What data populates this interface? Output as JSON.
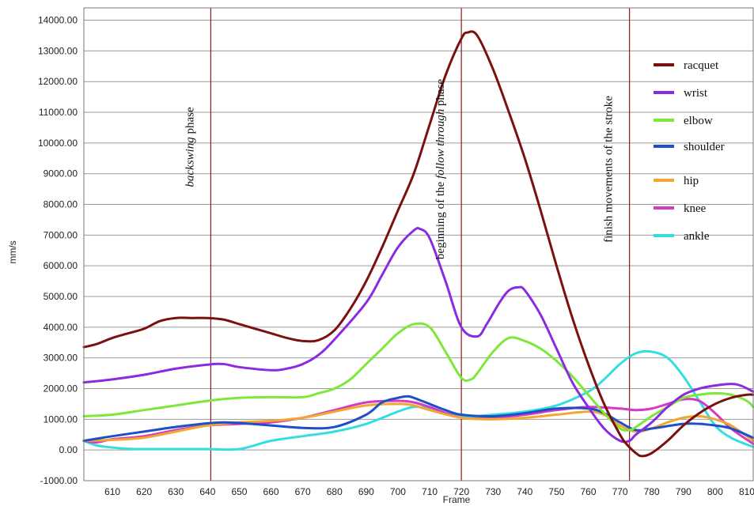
{
  "chart_data": {
    "type": "line",
    "title": "",
    "xlabel": "Frame",
    "ylabel": "mm/s",
    "xlim": [
      601,
      812
    ],
    "ylim": [
      -1000,
      14400
    ],
    "x_ticks": [
      610,
      620,
      630,
      640,
      650,
      660,
      670,
      680,
      690,
      700,
      710,
      720,
      730,
      740,
      750,
      760,
      770,
      780,
      790,
      800,
      810
    ],
    "y_ticks": [
      -1000,
      0,
      1000,
      2000,
      3000,
      4000,
      5000,
      6000,
      7000,
      8000,
      9000,
      10000,
      11000,
      12000,
      13000,
      14000
    ],
    "y_tick_labels": [
      "-1000.00",
      "0.00",
      "1000.00",
      "2000.00",
      "3000.00",
      "4000.00",
      "5000.00",
      "6000.00",
      "7000.00",
      "8000.00",
      "9000.00",
      "10000.00",
      "11000.00",
      "12000.00",
      "13000.00",
      "14000.00"
    ],
    "grid": "horizontal",
    "legend_position": "right",
    "series": [
      {
        "name": "racquet",
        "color": "#7b1010",
        "x": [
          601,
          605,
          610,
          615,
          620,
          625,
          630,
          635,
          640,
          645,
          650,
          655,
          660,
          665,
          670,
          675,
          680,
          685,
          690,
          695,
          700,
          705,
          710,
          715,
          720,
          722,
          725,
          730,
          735,
          740,
          745,
          750,
          755,
          760,
          765,
          770,
          772,
          775,
          777,
          780,
          785,
          790,
          795,
          800,
          805,
          810,
          812
        ],
        "y": [
          3350,
          3450,
          3650,
          3800,
          3950,
          4200,
          4300,
          4300,
          4300,
          4250,
          4100,
          3950,
          3800,
          3650,
          3550,
          3580,
          3900,
          4600,
          5500,
          6600,
          7800,
          9000,
          10600,
          12200,
          13400,
          13600,
          13500,
          12400,
          11000,
          9500,
          7800,
          6000,
          4300,
          2800,
          1500,
          500,
          200,
          -100,
          -200,
          -100,
          300,
          800,
          1200,
          1500,
          1700,
          1800,
          1800
        ]
      },
      {
        "name": "wrist",
        "color": "#8a2be2",
        "x": [
          601,
          610,
          620,
          630,
          640,
          645,
          650,
          660,
          665,
          670,
          675,
          680,
          690,
          695,
          700,
          705,
          707,
          710,
          715,
          720,
          725,
          728,
          732,
          735,
          738,
          740,
          745,
          750,
          755,
          760,
          765,
          770,
          773,
          775,
          780,
          785,
          790,
          795,
          800,
          805,
          808,
          812
        ],
        "y": [
          2200,
          2300,
          2450,
          2650,
          2780,
          2800,
          2700,
          2600,
          2650,
          2800,
          3100,
          3600,
          4800,
          5700,
          6600,
          7150,
          7200,
          6900,
          5500,
          4000,
          3700,
          4100,
          4800,
          5200,
          5300,
          5200,
          4400,
          3300,
          2200,
          1400,
          700,
          300,
          300,
          500,
          900,
          1400,
          1800,
          2000,
          2100,
          2150,
          2100,
          1900
        ]
      },
      {
        "name": "elbow",
        "color": "#7ee83a",
        "x": [
          601,
          610,
          620,
          630,
          640,
          650,
          660,
          670,
          675,
          680,
          685,
          690,
          695,
          700,
          705,
          710,
          715,
          720,
          723,
          725,
          730,
          735,
          740,
          745,
          750,
          755,
          760,
          765,
          770,
          773,
          775,
          780,
          785,
          790,
          795,
          800,
          805,
          810,
          812
        ],
        "y": [
          1100,
          1150,
          1300,
          1450,
          1600,
          1700,
          1720,
          1720,
          1850,
          2000,
          2300,
          2800,
          3300,
          3800,
          4100,
          4000,
          3200,
          2350,
          2300,
          2500,
          3200,
          3650,
          3550,
          3300,
          2900,
          2400,
          1800,
          1200,
          700,
          650,
          750,
          1100,
          1400,
          1700,
          1800,
          1850,
          1800,
          1600,
          1400
        ]
      },
      {
        "name": "shoulder",
        "color": "#1f4fc6",
        "x": [
          601,
          610,
          620,
          630,
          640,
          645,
          650,
          660,
          670,
          680,
          690,
          695,
          700,
          703,
          705,
          710,
          715,
          720,
          730,
          740,
          750,
          760,
          765,
          770,
          775,
          780,
          790,
          795,
          800,
          805,
          812
        ],
        "y": [
          300,
          450,
          600,
          750,
          870,
          900,
          880,
          800,
          720,
          750,
          1150,
          1550,
          1700,
          1750,
          1700,
          1500,
          1300,
          1150,
          1100,
          1200,
          1350,
          1350,
          1200,
          900,
          650,
          700,
          850,
          850,
          800,
          700,
          400
        ]
      },
      {
        "name": "hip",
        "color": "#f0a830",
        "x": [
          601,
          610,
          620,
          630,
          640,
          650,
          660,
          670,
          680,
          690,
          700,
          705,
          710,
          720,
          730,
          740,
          750,
          760,
          765,
          770,
          775,
          780,
          785,
          790,
          795,
          800,
          805,
          812
        ],
        "y": [
          300,
          330,
          400,
          600,
          800,
          900,
          950,
          1050,
          1250,
          1450,
          1500,
          1450,
          1300,
          1050,
          1000,
          1050,
          1150,
          1250,
          1150,
          800,
          600,
          700,
          900,
          1050,
          1100,
          1000,
          800,
          300
        ]
      },
      {
        "name": "knee",
        "color": "#d63ac4",
        "x": [
          601,
          605,
          610,
          620,
          630,
          640,
          650,
          660,
          670,
          680,
          690,
          700,
          705,
          710,
          720,
          730,
          740,
          750,
          760,
          770,
          775,
          780,
          785,
          790,
          795,
          800,
          805,
          812
        ],
        "y": [
          300,
          250,
          350,
          450,
          650,
          800,
          850,
          900,
          1050,
          1300,
          1550,
          1600,
          1550,
          1400,
          1050,
          1050,
          1150,
          1300,
          1400,
          1350,
          1300,
          1350,
          1500,
          1650,
          1600,
          1200,
          700,
          200
        ]
      },
      {
        "name": "ankle",
        "color": "#33dde0",
        "x": [
          601,
          605,
          610,
          615,
          620,
          630,
          640,
          650,
          660,
          670,
          680,
          690,
          700,
          705,
          710,
          720,
          730,
          740,
          750,
          760,
          765,
          770,
          775,
          780,
          785,
          790,
          795,
          800,
          805,
          812
        ],
        "y": [
          300,
          150,
          80,
          40,
          30,
          30,
          30,
          30,
          300,
          450,
          600,
          850,
          1250,
          1400,
          1350,
          1100,
          1150,
          1250,
          1450,
          1900,
          2300,
          2800,
          3150,
          3200,
          3000,
          2400,
          1600,
          800,
          400,
          100
        ]
      }
    ],
    "annotations": [
      {
        "x": 641,
        "text_pre": "",
        "text_italic": "backswing",
        "text_post": " phase"
      },
      {
        "x": 720,
        "text_pre": "beginning of the ",
        "text_italic": "follow through",
        "text_post": " phase"
      },
      {
        "x": 773,
        "text_pre": "finish movements of the stroke",
        "text_italic": "",
        "text_post": ""
      }
    ],
    "marker_line_color": "#8b1a1a"
  }
}
